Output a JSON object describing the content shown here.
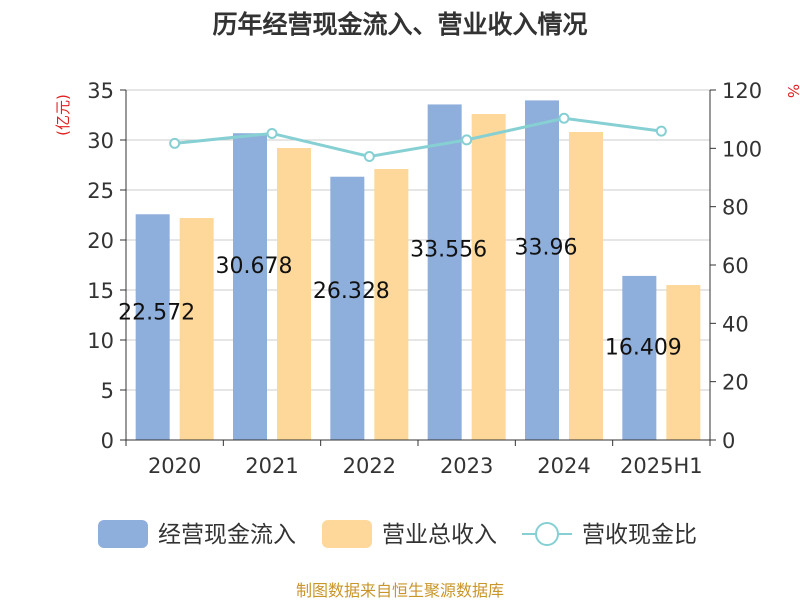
{
  "chart_data": {
    "type": "bar",
    "title": "历年经营现金流入、营业收入情况",
    "categories": [
      "2020",
      "2021",
      "2022",
      "2023",
      "2024",
      "2025H1"
    ],
    "left_axis": {
      "unit_label": "(亿元)",
      "ylim": [
        0,
        35
      ],
      "ticks": [
        0,
        5,
        10,
        15,
        20,
        25,
        30,
        35
      ],
      "tick_labels": [
        "0",
        "5",
        "10",
        "15",
        "20",
        "25",
        "30",
        "35"
      ]
    },
    "right_axis": {
      "unit_label": "%",
      "ylim": [
        0,
        120
      ],
      "ticks": [
        0,
        20,
        40,
        60,
        80,
        100,
        120
      ],
      "tick_labels": [
        "0",
        "20",
        "40",
        "60",
        "80",
        "100",
        "120"
      ]
    },
    "grid": true,
    "legend_position": "bottom",
    "series": [
      {
        "name": "经营现金流入",
        "type": "bar",
        "axis": "left",
        "color": "#8eaedb",
        "values": [
          22.572,
          30.678,
          26.328,
          33.556,
          33.96,
          16.409
        ],
        "data_labels": [
          "22.572",
          "30.678",
          "26.328",
          "33.556",
          "33.96",
          "16.409"
        ]
      },
      {
        "name": "营业总收入",
        "type": "bar",
        "axis": "left",
        "color": "#fdd89a",
        "values": [
          22.2,
          29.2,
          27.1,
          32.6,
          30.8,
          15.5
        ]
      },
      {
        "name": "营收现金比",
        "type": "line",
        "axis": "right",
        "color": "#86d0d4",
        "values": [
          101.7,
          105.1,
          97.2,
          102.9,
          110.3,
          105.9
        ]
      }
    ],
    "source": "制图数据来自恒生聚源数据库"
  }
}
